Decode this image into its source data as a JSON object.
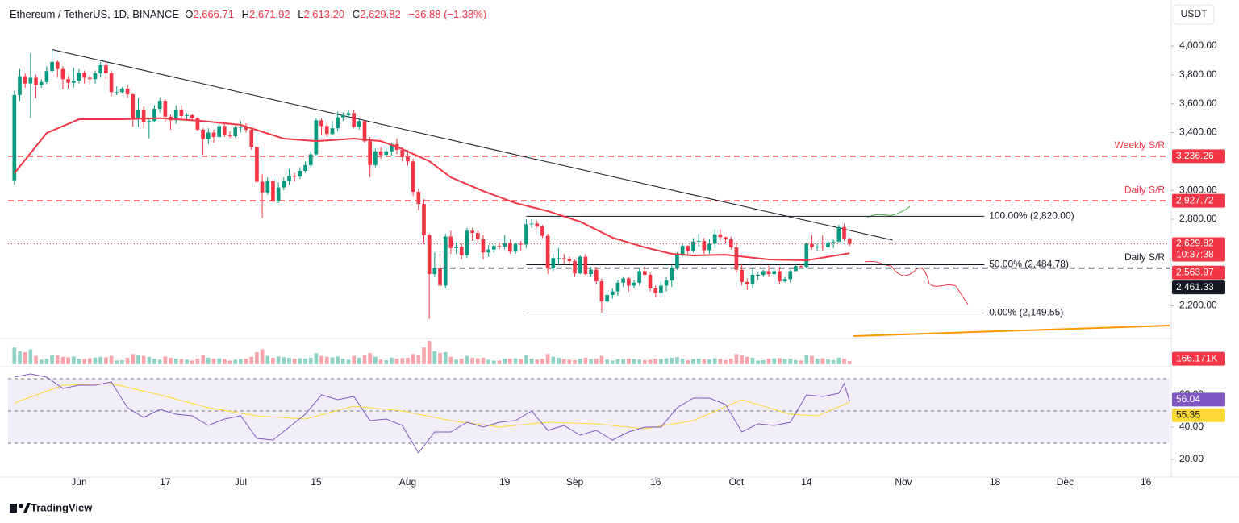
{
  "header": {
    "symbol": "Ethereum / TetherUS, 1D, BINANCE",
    "ohlc": [
      {
        "key": "O",
        "value": "2,666.71"
      },
      {
        "key": "H",
        "value": "2,671.92"
      },
      {
        "key": "L",
        "value": "2,613.20"
      },
      {
        "key": "C",
        "value": "2,629.82"
      }
    ],
    "change": "−36.88 (−1.38%)"
  },
  "footer": "TradingView",
  "chart_data": {
    "type": "candlestick",
    "currency": "USDT",
    "up_color": "#089981",
    "down_color": "#f23645",
    "grid": false,
    "x": [
      141,
      142,
      143,
      144,
      145,
      146,
      147,
      148,
      149,
      150,
      151,
      152,
      153,
      154,
      155,
      156,
      157,
      158,
      159,
      160,
      161,
      162,
      163,
      164,
      165,
      166,
      167,
      168,
      169,
      170,
      171,
      172,
      173,
      174,
      175,
      176,
      177,
      178,
      179,
      180,
      181,
      182,
      183,
      184,
      185,
      186,
      187,
      188,
      189,
      190,
      191,
      192,
      193,
      194,
      195,
      196,
      197,
      198,
      199,
      200,
      201,
      202,
      203,
      204,
      205,
      206,
      207,
      208,
      209,
      210,
      211,
      212,
      213,
      214,
      215,
      216,
      217,
      218,
      219,
      220,
      221,
      222,
      223,
      224,
      225,
      226,
      227,
      228,
      229,
      230,
      231,
      232,
      233,
      234,
      235,
      236,
      237,
      238,
      239,
      240,
      241,
      242,
      243,
      244,
      245,
      246,
      247,
      248,
      249,
      250,
      251,
      252,
      253,
      254,
      255,
      256,
      257,
      258,
      259,
      260,
      261,
      262,
      263,
      264,
      265,
      266,
      267,
      268,
      269,
      270,
      271,
      272,
      273,
      274,
      275,
      276,
      277,
      278,
      279,
      280,
      281,
      282,
      283,
      284,
      285,
      286,
      287,
      288,
      289,
      290,
      291,
      292,
      293,
      294,
      295,
      296
    ],
    "open": [
      3070,
      3660,
      3790,
      3740,
      3780,
      3728,
      3750,
      3826,
      3890,
      3840,
      3770,
      3745,
      3760,
      3815,
      3780,
      3770,
      3810,
      3866,
      3812,
      3680,
      3680,
      3705,
      3665,
      3500,
      3560,
      3470,
      3480,
      3565,
      3620,
      3510,
      3485,
      3560,
      3515,
      3520,
      3500,
      3420,
      3355,
      3400,
      3370,
      3445,
      3380,
      3375,
      3435,
      3440,
      3420,
      3300,
      3060,
      2985,
      3065,
      2930,
      3020,
      3065,
      3100,
      3095,
      3135,
      3175,
      3250,
      3485,
      3445,
      3390,
      3430,
      3505,
      3520,
      3535,
      3440,
      3480,
      3340,
      3175,
      3270,
      3245,
      3270,
      3320,
      3280,
      3230,
      3200,
      2990,
      2905,
      2690,
      2420,
      2460,
      2340,
      2680,
      2600,
      2610,
      2550,
      2720,
      2705,
      2660,
      2570,
      2590,
      2615,
      2610,
      2635,
      2575,
      2630,
      2625,
      2765,
      2770,
      2750,
      2685,
      2460,
      2530,
      2530,
      2525,
      2510,
      2425,
      2540,
      2420,
      2450,
      2370,
      2230,
      2275,
      2300,
      2360,
      2390,
      2340,
      2360,
      2440,
      2415,
      2320,
      2290,
      2340,
      2375,
      2465,
      2560,
      2615,
      2580,
      2645,
      2650,
      2585,
      2630,
      2695,
      2675,
      2660,
      2605,
      2450,
      2365,
      2350,
      2415,
      2415,
      2440,
      2420,
      2440,
      2370,
      2385,
      2440,
      2475,
      2470,
      2630,
      2605,
      2610,
      2605,
      2640,
      2645,
      2745,
      2666.71
    ],
    "high": [
      3690,
      3840,
      3810,
      3950,
      3800,
      3770,
      3860,
      3975,
      3900,
      3860,
      3790,
      3850,
      3840,
      3830,
      3800,
      3830,
      3890,
      3890,
      3830,
      3720,
      3715,
      3730,
      3670,
      3640,
      3580,
      3500,
      3590,
      3645,
      3630,
      3525,
      3590,
      3590,
      3535,
      3530,
      3505,
      3430,
      3430,
      3420,
      3470,
      3470,
      3410,
      3445,
      3480,
      3465,
      3430,
      3310,
      3110,
      3090,
      3080,
      3055,
      3090,
      3150,
      3120,
      3160,
      3200,
      3270,
      3500,
      3500,
      3470,
      3480,
      3545,
      3540,
      3560,
      3560,
      3490,
      3480,
      3370,
      3290,
      3300,
      3290,
      3330,
      3360,
      3300,
      3280,
      3220,
      3010,
      2940,
      2700,
      2570,
      2560,
      2700,
      2720,
      2640,
      2630,
      2740,
      2740,
      2720,
      2690,
      2620,
      2630,
      2640,
      2690,
      2660,
      2640,
      2650,
      2800,
      2800,
      2790,
      2760,
      2700,
      2560,
      2600,
      2560,
      2540,
      2520,
      2550,
      2560,
      2470,
      2470,
      2390,
      2300,
      2320,
      2380,
      2400,
      2400,
      2380,
      2460,
      2470,
      2430,
      2340,
      2370,
      2400,
      2480,
      2570,
      2630,
      2620,
      2670,
      2700,
      2670,
      2660,
      2730,
      2730,
      2680,
      2680,
      2640,
      2490,
      2390,
      2460,
      2430,
      2450,
      2480,
      2460,
      2470,
      2400,
      2450,
      2490,
      2490,
      2640,
      2690,
      2630,
      2690,
      2650,
      2660,
      2760,
      2770,
      2671.92
    ],
    "low": [
      3040,
      3620,
      3710,
      3500,
      3640,
      3710,
      3735,
      3810,
      3780,
      3700,
      3705,
      3710,
      3740,
      3740,
      3735,
      3740,
      3780,
      3770,
      3650,
      3660,
      3670,
      3640,
      3440,
      3440,
      3430,
      3360,
      3470,
      3540,
      3470,
      3420,
      3460,
      3490,
      3480,
      3480,
      3410,
      3245,
      3320,
      3330,
      3360,
      3370,
      3360,
      3365,
      3400,
      3400,
      3280,
      3050,
      2810,
      2970,
      2915,
      2910,
      3000,
      3040,
      3060,
      3080,
      3120,
      3160,
      3240,
      3380,
      3370,
      3380,
      3410,
      3480,
      3500,
      3430,
      3420,
      3330,
      3090,
      3160,
      3220,
      3230,
      3240,
      3250,
      3200,
      3170,
      2960,
      2860,
      2630,
      2110,
      2400,
      2310,
      2320,
      2560,
      2560,
      2520,
      2530,
      2650,
      2640,
      2520,
      2540,
      2570,
      2590,
      2590,
      2560,
      2560,
      2580,
      2600,
      2740,
      2740,
      2670,
      2420,
      2440,
      2480,
      2490,
      2490,
      2400,
      2420,
      2410,
      2400,
      2350,
      2150,
      2220,
      2250,
      2270,
      2330,
      2300,
      2320,
      2340,
      2390,
      2300,
      2260,
      2260,
      2300,
      2330,
      2450,
      2540,
      2560,
      2570,
      2610,
      2560,
      2560,
      2600,
      2650,
      2630,
      2590,
      2430,
      2340,
      2310,
      2320,
      2380,
      2400,
      2400,
      2410,
      2350,
      2360,
      2360,
      2440,
      2460,
      2460,
      2590,
      2580,
      2580,
      2590,
      2600,
      2640,
      2650,
      2613.2
    ],
    "close": [
      3660,
      3790,
      3740,
      3780,
      3728,
      3750,
      3826,
      3890,
      3840,
      3770,
      3745,
      3760,
      3815,
      3780,
      3770,
      3810,
      3866,
      3812,
      3680,
      3680,
      3705,
      3665,
      3500,
      3560,
      3470,
      3480,
      3565,
      3620,
      3510,
      3485,
      3560,
      3515,
      3520,
      3500,
      3420,
      3355,
      3400,
      3370,
      3445,
      3380,
      3375,
      3435,
      3440,
      3420,
      3300,
      3060,
      2985,
      3065,
      2930,
      3020,
      3065,
      3100,
      3095,
      3135,
      3175,
      3250,
      3485,
      3445,
      3390,
      3430,
      3505,
      3520,
      3535,
      3440,
      3480,
      3340,
      3175,
      3270,
      3245,
      3270,
      3320,
      3280,
      3230,
      3200,
      2990,
      2905,
      2690,
      2420,
      2460,
      2340,
      2680,
      2600,
      2610,
      2550,
      2720,
      2705,
      2660,
      2570,
      2590,
      2615,
      2610,
      2635,
      2575,
      2630,
      2625,
      2765,
      2770,
      2750,
      2685,
      2460,
      2530,
      2530,
      2525,
      2510,
      2425,
      2540,
      2420,
      2450,
      2370,
      2230,
      2275,
      2300,
      2360,
      2390,
      2340,
      2360,
      2440,
      2415,
      2320,
      2290,
      2340,
      2375,
      2465,
      2560,
      2615,
      2580,
      2645,
      2650,
      2585,
      2630,
      2695,
      2675,
      2660,
      2605,
      2450,
      2365,
      2350,
      2415,
      2415,
      2440,
      2420,
      2440,
      2370,
      2385,
      2440,
      2475,
      2470,
      2630,
      2605,
      2610,
      2605,
      2640,
      2645,
      2745,
      2666.71,
      2629.82
    ],
    "last_price_label": "2,629.82",
    "countdown": "10:37:38",
    "xlim": [
      139.83,
      355.4
    ],
    "xticks": [
      {
        "value": 153,
        "label": "Jun"
      },
      {
        "value": 169,
        "label": "17"
      },
      {
        "value": 183,
        "label": "Jul"
      },
      {
        "value": 197,
        "label": "15"
      },
      {
        "value": 214,
        "label": "Aug"
      },
      {
        "value": 232,
        "label": "19"
      },
      {
        "value": 245,
        "label": "Sep"
      },
      {
        "value": 260,
        "label": "16"
      },
      {
        "value": 275,
        "label": "Oct"
      },
      {
        "value": 288,
        "label": "14"
      },
      {
        "value": 306,
        "label": "Nov"
      },
      {
        "value": 323,
        "label": "18"
      },
      {
        "value": 336,
        "label": "Dec"
      },
      {
        "value": 351,
        "label": "16"
      }
    ],
    "ylim": [
      1985,
      4151
    ],
    "yticks": [
      {
        "value": 2200,
        "label": "2,200.00"
      },
      {
        "value": 2800,
        "label": "2,800.00"
      },
      {
        "value": 3000,
        "label": "3,000.00"
      },
      {
        "value": 3400,
        "label": "3,400.00"
      },
      {
        "value": 3600,
        "label": "3,600.00"
      },
      {
        "value": 3800,
        "label": "3,800.00"
      },
      {
        "value": 4000,
        "label": "4,000.00"
      }
    ],
    "ma": {
      "color": "#f23645",
      "value_label": "2,563.97",
      "x": [
        141,
        147,
        153,
        161,
        168,
        176,
        183,
        191,
        197,
        204,
        209,
        213,
        218,
        222,
        228,
        234,
        240,
        246,
        252,
        258,
        263,
        267,
        273,
        281,
        288,
        296
      ],
      "values": [
        3118,
        3397,
        3492,
        3492,
        3500,
        3480,
        3453,
        3358,
        3341,
        3358,
        3341,
        3286,
        3202,
        3090,
        2995,
        2912,
        2856,
        2783,
        2672,
        2605,
        2560,
        2549,
        2554,
        2521,
        2515,
        2563.97
      ]
    },
    "trendline": {
      "color": "#131722",
      "x": [
        148,
        304
      ],
      "values": [
        3975,
        2655
      ]
    },
    "levels": [
      {
        "name": "Weekly S/R",
        "value": 3236.26,
        "value_label": "3,236.26",
        "color": "#f23645",
        "from": 139.83
      },
      {
        "name": "Daily S/R",
        "value": 2927.72,
        "value_label": "2,927.72",
        "color": "#f23645",
        "from": 139.83
      },
      {
        "name": "Daily S/R",
        "value": 2461.33,
        "value_label": "2,461.33",
        "color": "#131722",
        "from": 220
      }
    ],
    "fib": {
      "from": 236,
      "to": 321,
      "levels": [
        {
          "label": "100.00% (2,820.00)",
          "value": 2820
        },
        {
          "label": "50.00% (2,484.78)",
          "value": 2484.78
        },
        {
          "label": "0.00% (2,149.55)",
          "value": 2149.55
        }
      ]
    },
    "volume": {
      "ylim": [
        0,
        1300
      ],
      "value_label": "166.171K",
      "values": [
        900,
        700,
        650,
        800,
        450,
        250,
        300,
        500,
        480,
        400,
        380,
        420,
        300,
        280,
        320,
        350,
        400,
        380,
        450,
        200,
        220,
        350,
        550,
        500,
        450,
        400,
        300,
        250,
        420,
        350,
        300,
        280,
        250,
        200,
        300,
        500,
        350,
        300,
        320,
        280,
        200,
        250,
        280,
        300,
        400,
        650,
        800,
        450,
        350,
        420,
        380,
        350,
        300,
        320,
        300,
        350,
        600,
        450,
        400,
        380,
        420,
        300,
        250,
        450,
        350,
        500,
        600,
        400,
        250,
        220,
        350,
        300,
        330,
        350,
        550,
        500,
        900,
        1250,
        700,
        600,
        650,
        400,
        250,
        300,
        450,
        350,
        320,
        350,
        250,
        200,
        200,
        300,
        300,
        320,
        280,
        500,
        300,
        250,
        300,
        550,
        400,
        350,
        280,
        250,
        220,
        300,
        350,
        280,
        300,
        450,
        250,
        200,
        280,
        270,
        300,
        280,
        260,
        220,
        250,
        300,
        280,
        320,
        350,
        380,
        300,
        220,
        280,
        300,
        280,
        260,
        320,
        280,
        220,
        300,
        550,
        480,
        400,
        350,
        200,
        220,
        300,
        320,
        330,
        280,
        300,
        220,
        200,
        500,
        450,
        300,
        320,
        260,
        220,
        350,
        300,
        166.171
      ]
    },
    "rsi": {
      "color": "#7e57c2",
      "ylim": [
        9,
        75
      ],
      "yticks": [
        {
          "value": 20,
          "label": "20.00"
        },
        {
          "value": 40,
          "label": "40.00"
        },
        {
          "value": 60,
          "label": "60.00"
        }
      ],
      "levels": [
        70,
        50,
        30
      ],
      "x": [
        141,
        144,
        147,
        150,
        153,
        156,
        159,
        162,
        165,
        168,
        171,
        174,
        177,
        180,
        183,
        186,
        189,
        192,
        195,
        198,
        201,
        204,
        207,
        210,
        213,
        216,
        219,
        222,
        225,
        228,
        231,
        234,
        237,
        240,
        243,
        246,
        249,
        252,
        255,
        258,
        261,
        264,
        267,
        270,
        273,
        276,
        279,
        282,
        285,
        288,
        291,
        294,
        295,
        296
      ],
      "values": [
        71,
        73,
        71,
        64,
        66,
        66,
        68,
        52,
        46,
        51,
        48,
        47,
        41,
        45,
        47,
        33,
        32,
        40,
        48,
        60,
        57,
        59,
        44,
        45,
        41,
        24,
        37,
        37,
        43,
        40,
        43,
        44,
        50,
        38,
        41,
        35,
        38,
        32,
        37,
        40,
        40,
        52,
        58,
        58,
        54,
        37,
        42,
        41,
        43,
        60,
        59,
        61,
        67,
        56.04
      ],
      "signal": {
        "color": "#fdd835",
        "x": [
          141,
          150,
          159,
          168,
          177,
          186,
          195,
          204,
          213,
          222,
          231,
          240,
          249,
          258,
          267,
          276,
          285,
          290,
          296
        ],
        "values": [
          55,
          66,
          67,
          60,
          52,
          47,
          45,
          53,
          50,
          44,
          40,
          43,
          42,
          39,
          44,
          57,
          48,
          47,
          55.35
        ]
      }
    }
  }
}
